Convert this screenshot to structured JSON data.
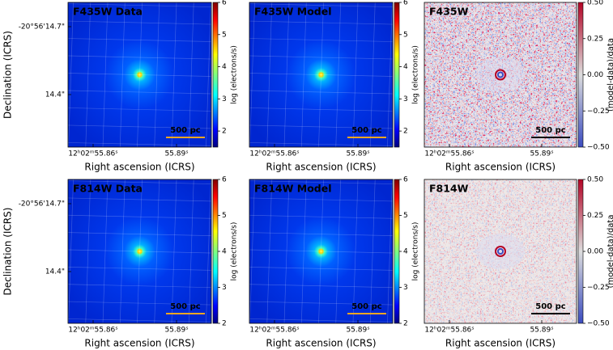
{
  "panels": [
    {
      "title": "F435W Data",
      "x_label": "Right ascension (ICRS)",
      "x_ticks": [
        "12ʰ02ᵐ55.86ˢ",
        "55.89ˢ"
      ],
      "y_label": "Declination (ICRS)",
      "y_ticks": [
        "-20°56'14.7\"",
        "14.4\""
      ],
      "colormap": "jet",
      "colorbar": {
        "label": "log (electrons/s)",
        "lim": [
          1.5,
          6
        ],
        "ticks": [
          2,
          3,
          4,
          5,
          6
        ]
      },
      "scale_bar": "500 pc"
    },
    {
      "title": "F435W Model",
      "x_label": "Right ascension (ICRS)",
      "x_ticks": [
        "12ʰ02ᵐ55.86ˢ",
        "55.89ˢ"
      ],
      "colormap": "jet",
      "colorbar": {
        "label": "log (electrons/s)",
        "lim": [
          1.5,
          6
        ],
        "ticks": [
          2,
          3,
          4,
          5,
          6
        ]
      },
      "scale_bar": "500 pc"
    },
    {
      "title": "F435W",
      "x_label": "Right ascension (ICRS)",
      "x_ticks": [
        "12ʰ02ᵐ55.86ˢ",
        "55.89ˢ"
      ],
      "colormap": "coolwarm",
      "colorbar": {
        "label": "(model-data)/data",
        "lim": [
          -0.5,
          0.5
        ],
        "ticks": [
          {
            "value": 0.5,
            "label": "0.50"
          },
          {
            "value": 0.25,
            "label": "0.25"
          },
          {
            "value": 0,
            "label": "0.00"
          },
          {
            "value": -0.25,
            "label": "−0.25"
          },
          {
            "value": -0.5,
            "label": "−0.50"
          }
        ]
      },
      "scale_bar": "500 pc"
    },
    {
      "title": "F814W Data",
      "x_label": "Right ascension (ICRS)",
      "x_ticks": [
        "12ʰ02ᵐ55.86ˢ",
        "55.89ˢ"
      ],
      "y_label": "Declination (ICRS)",
      "y_ticks": [
        "-20°56'14.7\"",
        "14.4\""
      ],
      "colormap": "jet",
      "colorbar": {
        "label": "log (electrons/s)",
        "lim": [
          2,
          6
        ],
        "ticks": [
          2,
          3,
          4,
          5,
          6
        ]
      },
      "scale_bar": "500 pc"
    },
    {
      "title": "F814W Model",
      "x_label": "Right ascension (ICRS)",
      "x_ticks": [
        "12ʰ02ᵐ55.86ˢ",
        "55.89ˢ"
      ],
      "colormap": "jet",
      "colorbar": {
        "label": "log (electrons/s)",
        "lim": [
          2,
          6
        ],
        "ticks": [
          2,
          3,
          4,
          5,
          6
        ]
      },
      "scale_bar": "500 pc"
    },
    {
      "title": "F814W",
      "x_label": "Right ascension (ICRS)",
      "x_ticks": [
        "12ʰ02ᵐ55.86ˢ",
        "55.89ˢ"
      ],
      "colormap": "coolwarm",
      "colorbar": {
        "label": "(model-data)/data",
        "lim": [
          -0.5,
          0.5
        ],
        "ticks": [
          {
            "value": 0.5,
            "label": "0.50"
          },
          {
            "value": 0.25,
            "label": "0.25"
          },
          {
            "value": 0,
            "label": "0.00"
          },
          {
            "value": -0.25,
            "label": "−0.25"
          },
          {
            "value": -0.5,
            "label": "−0.50"
          }
        ]
      },
      "scale_bar": "500 pc"
    }
  ]
}
